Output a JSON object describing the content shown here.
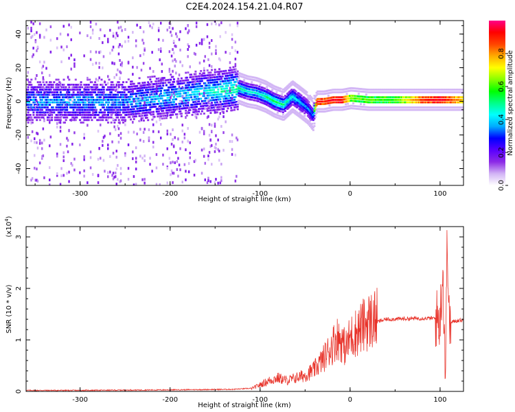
{
  "title": "C2E4.2024.154.21.04.R07",
  "chart_data": [
    {
      "type": "heatmap",
      "xlabel": "Height of straight line (km)",
      "ylabel": "Frequency (Hz)",
      "xlim": [
        -360,
        126
      ],
      "ylim": [
        -50,
        48
      ],
      "xticks": [
        -300,
        -200,
        -100,
        0,
        100
      ],
      "yticks": [
        -40,
        -20,
        0,
        20,
        40
      ],
      "colorbar": {
        "label": "Normalized spectral amplitude",
        "range": [
          0,
          1
        ],
        "ticks": [
          "0.0",
          "0.2",
          "0.4",
          "0.6",
          "0.8"
        ],
        "colors": [
          "#ffffff",
          "#d2b4f5",
          "#8c2ae6",
          "#5a00ff",
          "#0000ff",
          "#00aaff",
          "#00ffff",
          "#00ff88",
          "#00ff00",
          "#88ff00",
          "#ffff00",
          "#ffaa00",
          "#ff4400",
          "#ff0000",
          "#ff0088"
        ]
      },
      "ridge": {
        "x": [
          -360,
          -300,
          -250,
          -200,
          -170,
          -150,
          -135,
          -125,
          -115,
          -105,
          -95,
          -85,
          -75,
          -65,
          -55,
          -48,
          -42,
          -38,
          -30,
          -20,
          -10,
          0,
          20,
          50,
          80,
          100,
          126
        ],
        "freq": [
          0,
          0,
          0,
          3,
          5,
          6,
          7,
          8,
          6,
          5,
          3,
          0,
          -2,
          3,
          -1,
          -4,
          -8,
          0,
          0,
          1,
          1,
          2,
          1,
          1,
          1,
          1,
          1
        ],
        "amplitude": [
          0.3,
          0.3,
          0.3,
          0.35,
          0.35,
          0.4,
          0.45,
          0.45,
          0.4,
          0.4,
          0.45,
          0.5,
          0.45,
          0.4,
          0.35,
          0.3,
          0.3,
          0.9,
          0.85,
          0.9,
          0.9,
          0.6,
          0.55,
          0.55,
          0.85,
          0.9,
          0.7
        ]
      },
      "noise_extent_x": [
        -360,
        -125
      ]
    },
    {
      "type": "line",
      "xlabel": "Height of straight line (km)",
      "ylabel": "SNR (10 * v/v)",
      "yscale_label": "(x10",
      "yscale_exponent": "4",
      "yscale_suffix": ")",
      "xlim": [
        -360,
        126
      ],
      "ylim": [
        0,
        3.2
      ],
      "xticks": [
        -300,
        -200,
        -100,
        0,
        100
      ],
      "yticks": [
        0,
        1,
        2,
        3
      ],
      "color": "#e8332a",
      "series": [
        {
          "x": [
            -360,
            -300,
            -200,
            -130,
            -110,
            -100,
            -90,
            -80,
            -70,
            -60,
            -50,
            -40,
            -30,
            -20,
            -15,
            -10,
            -5,
            0,
            10,
            20,
            30,
            40,
            60,
            80,
            95,
            100,
            103,
            106,
            108,
            110,
            115,
            120,
            126
          ],
          "y": [
            0.01,
            0.01,
            0.02,
            0.03,
            0.05,
            0.12,
            0.2,
            0.25,
            0.2,
            0.25,
            0.3,
            0.4,
            0.6,
            0.85,
            1.0,
            0.95,
            0.8,
            1.0,
            1.15,
            1.3,
            1.35,
            1.4,
            1.41,
            1.42,
            1.42,
            1.4,
            2.4,
            0.3,
            3.2,
            1.3,
            1.36,
            1.38,
            1.38
          ]
        }
      ]
    }
  ]
}
